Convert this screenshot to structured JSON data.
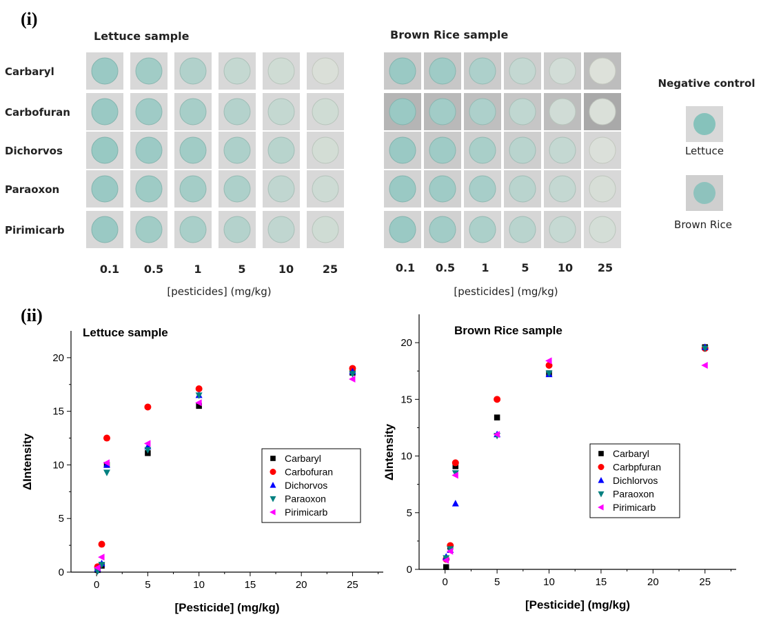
{
  "panel_labels": {
    "top": "(i)",
    "bottom": "(ii)"
  },
  "photo_grid": {
    "lettuce_title": "Lettuce sample",
    "rice_title": "Brown Rice sample",
    "rows": [
      "Carbaryl",
      "Carbofuran",
      "Dichorvos",
      "Paraoxon",
      "Pirimicarb"
    ],
    "concentrations": [
      "0.1",
      "0.5",
      "1",
      "5",
      "10",
      "25"
    ],
    "xlabel": "[pesticides] (mg/kg)",
    "negative_control": {
      "title": "Negative control",
      "lettuce": "Lettuce",
      "rice": "Brown Rice"
    }
  },
  "colors": {
    "Carbaryl": "#000000",
    "Carbofuran": "#ff0000",
    "Dichorvos": "#0000ff",
    "Paraoxon": "#008080",
    "Pirimicarb": "#ff00ff"
  },
  "chart_data": [
    {
      "type": "scatter",
      "title": "Lettuce sample",
      "xlabel": "[Pesticide] (mg/kg)",
      "ylabel": "ΔIntensity",
      "xlim": [
        -2.5,
        28
      ],
      "ylim": [
        0,
        22.5
      ],
      "xticks": [
        0,
        5,
        10,
        15,
        20,
        25
      ],
      "yticks": [
        0,
        5,
        10,
        15,
        20
      ],
      "legend_position": "center-right",
      "series": [
        {
          "name": "Carbaryl",
          "marker": "square",
          "x": [
            0.1,
            0.5,
            1,
            5,
            10,
            25
          ],
          "y": [
            0.2,
            0.6,
            10.0,
            11.1,
            15.5,
            18.6
          ]
        },
        {
          "name": "Carbofuran",
          "marker": "circle",
          "x": [
            0.1,
            0.5,
            1,
            5,
            10,
            25
          ],
          "y": [
            0.5,
            2.6,
            12.5,
            15.4,
            17.1,
            19.0
          ]
        },
        {
          "name": "Dichorvos",
          "marker": "triangle-up",
          "x": [
            0.1,
            0.5,
            1,
            5,
            10,
            25
          ],
          "y": [
            0.3,
            0.8,
            10.0,
            11.7,
            16.5,
            18.7
          ]
        },
        {
          "name": "Paraoxon",
          "marker": "triangle-down",
          "x": [
            0.1,
            0.5,
            1,
            5,
            10,
            25
          ],
          "y": [
            0.1,
            0.7,
            9.3,
            11.4,
            16.5,
            18.5
          ]
        },
        {
          "name": "Pirimicarb",
          "marker": "triangle-left",
          "x": [
            0.1,
            0.5,
            1,
            5,
            10,
            25
          ],
          "y": [
            0.4,
            1.4,
            10.2,
            12.0,
            15.8,
            18.0
          ]
        }
      ]
    },
    {
      "type": "scatter",
      "title": "Brown Rice sample",
      "xlabel": "[Pesticide] (mg/kg)",
      "ylabel": "ΔIntensity",
      "xlim": [
        -2.5,
        28
      ],
      "ylim": [
        0,
        22.5
      ],
      "xticks": [
        0,
        5,
        10,
        15,
        20,
        25
      ],
      "yticks": [
        0,
        5,
        10,
        15,
        20
      ],
      "legend_position": "center-right",
      "series": [
        {
          "name": "Carbaryl",
          "marker": "square",
          "x": [
            0.1,
            0.5,
            1,
            5,
            10,
            25
          ],
          "y": [
            0.2,
            2.0,
            9.1,
            13.4,
            17.3,
            19.6
          ]
        },
        {
          "name": "Carbpfuran",
          "marker": "circle",
          "x": [
            0.1,
            0.5,
            1,
            5,
            10,
            25
          ],
          "y": [
            0.9,
            2.1,
            9.4,
            15.0,
            18.0,
            19.5
          ]
        },
        {
          "name": "Dichlorvos",
          "marker": "triangle-up",
          "x": [
            0.1,
            0.5,
            1,
            5,
            10,
            25
          ],
          "y": [
            1.1,
            1.7,
            5.8,
            11.9,
            17.2,
            19.6
          ]
        },
        {
          "name": "Paraoxon",
          "marker": "triangle-down",
          "x": [
            0.1,
            0.5,
            1,
            5,
            10,
            25
          ],
          "y": [
            1.0,
            1.8,
            8.5,
            11.8,
            17.3,
            19.5
          ]
        },
        {
          "name": "Pirimicarb",
          "marker": "triangle-left",
          "x": [
            0.1,
            0.5,
            1,
            5,
            10,
            25
          ],
          "y": [
            0.8,
            1.6,
            8.3,
            11.9,
            18.4,
            18.0
          ]
        }
      ]
    }
  ]
}
